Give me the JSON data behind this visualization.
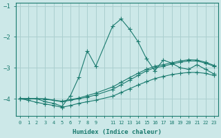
{
  "xlabel": "Humidex (Indice chaleur)",
  "background_color": "#cce8e8",
  "grid_color": "#aacfcf",
  "line_color": "#1a7a6e",
  "series": [
    {
      "x": [
        0,
        1,
        2,
        3,
        4,
        5,
        6,
        7,
        8,
        9,
        11,
        12,
        13,
        14,
        15,
        16,
        17,
        18,
        19,
        20,
        21,
        22,
        23
      ],
      "y": [
        -4.0,
        -4.0,
        -4.0,
        -4.1,
        -4.15,
        -4.25,
        -3.9,
        -3.3,
        -2.45,
        -2.95,
        -1.65,
        -1.42,
        -1.75,
        -2.15,
        -2.7,
        -3.1,
        -2.75,
        -2.85,
        -3.0,
        -3.05,
        -2.9,
        -3.05,
        -3.2
      ]
    },
    {
      "x": [
        0,
        1,
        2,
        3,
        4,
        5,
        6,
        7,
        8,
        9,
        11,
        12,
        13,
        14,
        15,
        16,
        17,
        18,
        19,
        20,
        21,
        22,
        23
      ],
      "y": [
        -4.0,
        -4.0,
        -4.0,
        -4.0,
        -4.05,
        -4.1,
        -4.05,
        -4.0,
        -3.95,
        -3.88,
        -3.7,
        -3.55,
        -3.4,
        -3.25,
        -3.1,
        -3.0,
        -2.95,
        -2.88,
        -2.82,
        -2.78,
        -2.78,
        -2.85,
        -2.95
      ]
    },
    {
      "x": [
        0,
        1,
        2,
        3,
        4,
        5,
        6,
        7,
        8,
        9,
        11,
        12,
        13,
        14,
        15,
        16,
        17,
        18,
        19,
        20,
        21,
        22,
        23
      ],
      "y": [
        -4.0,
        -4.0,
        -4.0,
        -4.02,
        -4.05,
        -4.08,
        -4.03,
        -3.98,
        -3.9,
        -3.82,
        -3.62,
        -3.47,
        -3.32,
        -3.18,
        -3.05,
        -2.95,
        -2.9,
        -2.84,
        -2.78,
        -2.74,
        -2.75,
        -2.82,
        -2.92
      ]
    },
    {
      "x": [
        0,
        1,
        2,
        3,
        4,
        5,
        6,
        7,
        8,
        9,
        11,
        12,
        13,
        14,
        15,
        16,
        17,
        18,
        19,
        20,
        21,
        22,
        23
      ],
      "y": [
        -4.0,
        -4.05,
        -4.12,
        -4.17,
        -4.22,
        -4.28,
        -4.22,
        -4.15,
        -4.1,
        -4.05,
        -3.92,
        -3.8,
        -3.68,
        -3.56,
        -3.45,
        -3.35,
        -3.28,
        -3.22,
        -3.18,
        -3.15,
        -3.15,
        -3.18,
        -3.25
      ]
    }
  ],
  "ylim": [
    -4.55,
    -0.9
  ],
  "xlim": [
    -0.5,
    23.5
  ],
  "yticks": [
    -4,
    -3,
    -2,
    -1
  ],
  "ytick_labels": [
    "-4",
    "-3",
    "-2",
    "-1"
  ],
  "marker": "+",
  "markersize": 4,
  "linewidth": 0.8
}
